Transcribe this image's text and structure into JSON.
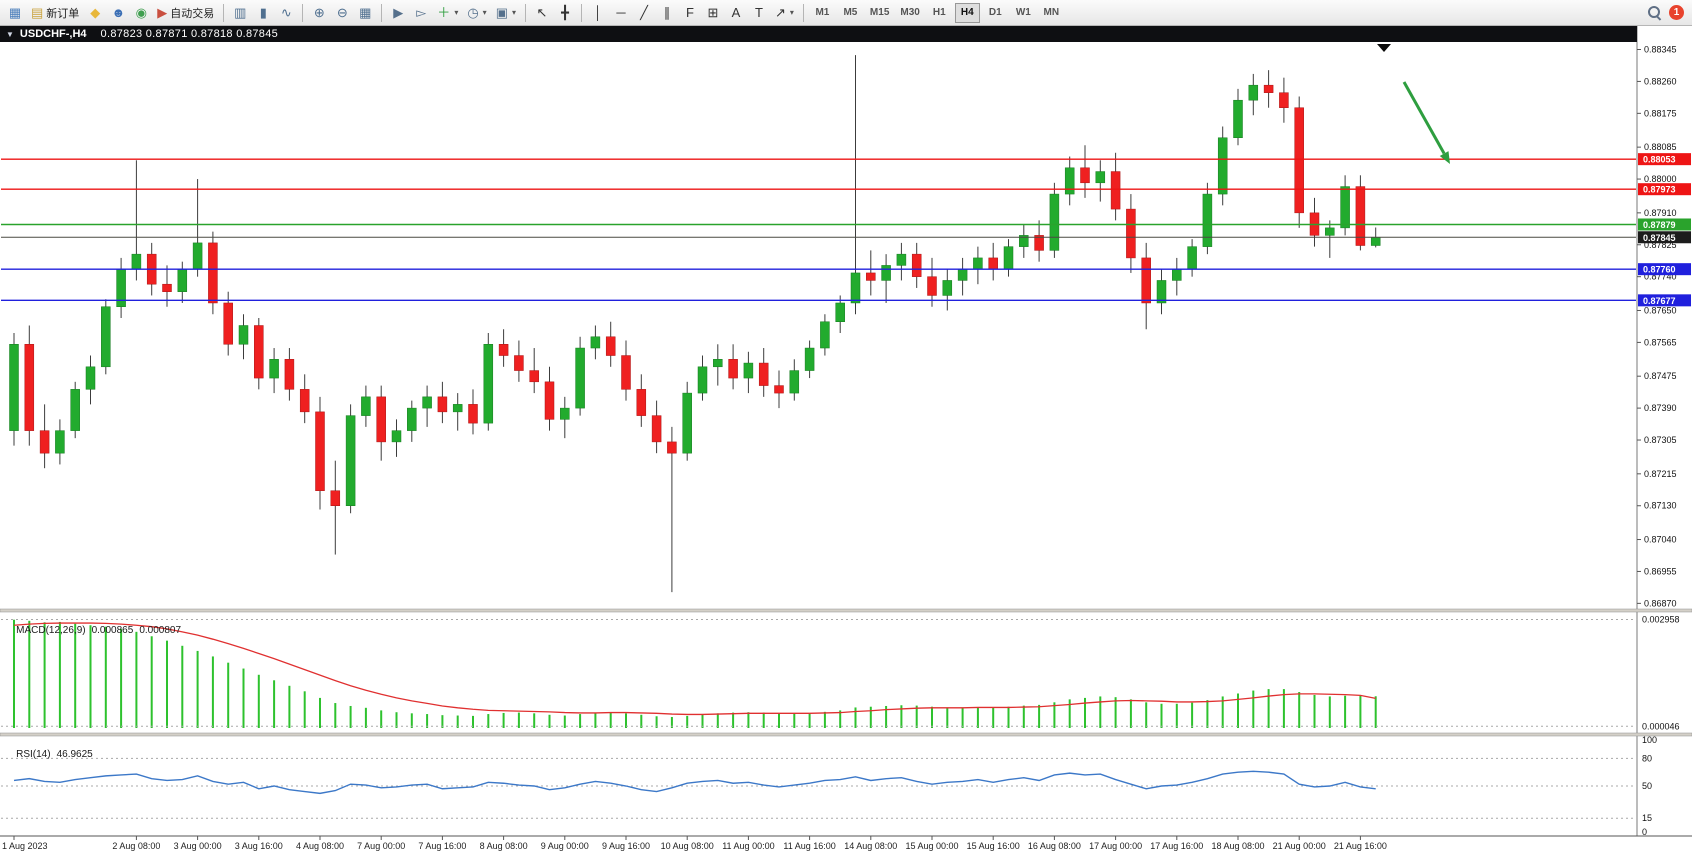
{
  "window": {
    "title_symbol": "USDCHF-,H4",
    "ohlc": "0.87823 0.87871 0.87818 0.87845"
  },
  "toolbar": {
    "notification_count": "1",
    "active_timeframe": "H4",
    "timeframes": [
      "M1",
      "M5",
      "M15",
      "M30",
      "H1",
      "H4",
      "D1",
      "W1",
      "MN"
    ],
    "groups": [
      {
        "items": [
          {
            "name": "new-chart",
            "glyph": "▦",
            "color": "#4a7ebb"
          },
          {
            "name": "new-order",
            "glyph": "▤",
            "color": "#c9a23c",
            "label": "新订单"
          },
          {
            "name": "favorites",
            "glyph": "◆",
            "color": "#e8b73a"
          },
          {
            "name": "profile",
            "glyph": "☻",
            "color": "#3b6fb5"
          },
          {
            "name": "community",
            "glyph": "◉",
            "color": "#3f9f4f"
          },
          {
            "name": "auto-trading",
            "glyph": "▶",
            "color": "#c94f3f",
            "label": "自动交易"
          }
        ]
      },
      {
        "items": [
          {
            "name": "bar-chart",
            "glyph": "▥",
            "color": "#4f6f8f"
          },
          {
            "name": "candlestick-chart",
            "glyph": "▮",
            "color": "#4f6f8f"
          },
          {
            "name": "line-chart",
            "glyph": "∿",
            "color": "#4f6f8f"
          }
        ]
      },
      {
        "items": [
          {
            "name": "zoom-in",
            "glyph": "⊕",
            "color": "#4f6f8f"
          },
          {
            "name": "zoom-out",
            "glyph": "⊖",
            "color": "#4f6f8f"
          },
          {
            "name": "tile-windows",
            "glyph": "▦",
            "color": "#4f6f8f"
          }
        ]
      },
      {
        "items": [
          {
            "name": "auto-scroll",
            "glyph": "▶",
            "color": "#55708c"
          },
          {
            "name": "chart-shift",
            "glyph": "▻",
            "color": "#55708c"
          },
          {
            "name": "indicators",
            "glyph": "＋",
            "color": "#2f9e3f",
            "dropdown": true
          },
          {
            "name": "periods",
            "glyph": "◷",
            "color": "#55708c",
            "dropdown": true
          },
          {
            "name": "templates",
            "glyph": "▣",
            "color": "#55708c",
            "dropdown": true
          }
        ]
      },
      {
        "items": [
          {
            "name": "cursor",
            "glyph": "↖",
            "color": "#333333"
          },
          {
            "name": "crosshair",
            "glyph": "╋",
            "color": "#333333"
          }
        ]
      },
      {
        "items": [
          {
            "name": "vertical-line",
            "glyph": "│",
            "color": "#333333"
          },
          {
            "name": "horizontal-line",
            "glyph": "─",
            "color": "#333333"
          },
          {
            "name": "trendline",
            "glyph": "╱",
            "color": "#333333"
          },
          {
            "name": "equidistant-channel",
            "glyph": "∥",
            "color": "#333333"
          },
          {
            "name": "fibonacci",
            "glyph": "F",
            "color": "#333333"
          },
          {
            "name": "shapes",
            "glyph": "⊞",
            "color": "#333333"
          },
          {
            "name": "text",
            "glyph": "A",
            "color": "#333333"
          },
          {
            "name": "text-label",
            "glyph": "T",
            "color": "#333333"
          },
          {
            "name": "arrows",
            "glyph": "↗",
            "color": "#333333",
            "dropdown": true
          }
        ]
      }
    ]
  },
  "chart_data": {
    "type": "candlestick",
    "symbol": "USDCHF",
    "timeframe": "H4",
    "price_range": [
      0.86855,
      0.88365
    ],
    "price_axis_ticks": [
      "0.88345",
      "0.88260",
      "0.88175",
      "0.88085",
      "0.88000",
      "0.87910",
      "0.87825",
      "0.87740",
      "0.87650",
      "0.87565",
      "0.87475",
      "0.87390",
      "0.87305",
      "0.87215",
      "0.87130",
      "0.87040",
      "0.86955",
      "0.86870"
    ],
    "x_labels": [
      {
        "label": "1 Aug 2023",
        "candle": 0
      },
      {
        "label": "2 Aug 08:00",
        "candle": 8
      },
      {
        "label": "3 Aug 00:00",
        "candle": 12
      },
      {
        "label": "3 Aug 16:00",
        "candle": 16
      },
      {
        "label": "4 Aug 08:00",
        "candle": 20
      },
      {
        "label": "7 Aug 00:00",
        "candle": 24
      },
      {
        "label": "7 Aug 16:00",
        "candle": 28
      },
      {
        "label": "8 Aug 08:00",
        "candle": 32
      },
      {
        "label": "9 Aug 00:00",
        "candle": 36
      },
      {
        "label": "9 Aug 16:00",
        "candle": 40
      },
      {
        "label": "10 Aug 08:00",
        "candle": 44
      },
      {
        "label": "11 Aug 00:00",
        "candle": 48
      },
      {
        "label": "11 Aug 16:00",
        "candle": 52
      },
      {
        "label": "14 Aug 08:00",
        "candle": 56
      },
      {
        "label": "15 Aug 00:00",
        "candle": 60
      },
      {
        "label": "15 Aug 16:00",
        "candle": 64
      },
      {
        "label": "16 Aug 08:00",
        "candle": 68
      },
      {
        "label": "17 Aug 00:00",
        "candle": 72
      },
      {
        "label": "17 Aug 16:00",
        "candle": 76
      },
      {
        "label": "18 Aug 08:00",
        "candle": 80
      },
      {
        "label": "21 Aug 00:00",
        "candle": 84
      },
      {
        "label": "21 Aug 16:00",
        "candle": 88
      }
    ],
    "candles": [
      [
        0.8733,
        0.8759,
        0.8729,
        0.8756
      ],
      [
        0.8756,
        0.8761,
        0.8729,
        0.8733
      ],
      [
        0.8733,
        0.874,
        0.8723,
        0.8727
      ],
      [
        0.8727,
        0.8736,
        0.8724,
        0.8733
      ],
      [
        0.8733,
        0.8746,
        0.8731,
        0.8744
      ],
      [
        0.8744,
        0.8753,
        0.874,
        0.875
      ],
      [
        0.875,
        0.8768,
        0.8748,
        0.8766
      ],
      [
        0.8766,
        0.8779,
        0.8763,
        0.8776
      ],
      [
        0.8776,
        0.8805,
        0.8773,
        0.878
      ],
      [
        0.878,
        0.8783,
        0.8769,
        0.8772
      ],
      [
        0.8772,
        0.8777,
        0.8766,
        0.877
      ],
      [
        0.877,
        0.8778,
        0.8767,
        0.8776
      ],
      [
        0.8776,
        0.88,
        0.8774,
        0.8783
      ],
      [
        0.8783,
        0.8786,
        0.8764,
        0.8767
      ],
      [
        0.8767,
        0.877,
        0.8753,
        0.8756
      ],
      [
        0.8756,
        0.8764,
        0.8752,
        0.8761
      ],
      [
        0.8761,
        0.8763,
        0.8744,
        0.8747
      ],
      [
        0.8747,
        0.8755,
        0.8743,
        0.8752
      ],
      [
        0.8752,
        0.8755,
        0.8741,
        0.8744
      ],
      [
        0.8744,
        0.8748,
        0.8735,
        0.8738
      ],
      [
        0.8738,
        0.8742,
        0.8712,
        0.8717
      ],
      [
        0.8717,
        0.8725,
        0.87,
        0.8713
      ],
      [
        0.8713,
        0.874,
        0.8711,
        0.8737
      ],
      [
        0.8737,
        0.8745,
        0.8734,
        0.8742
      ],
      [
        0.8742,
        0.8745,
        0.8725,
        0.873
      ],
      [
        0.873,
        0.8736,
        0.8726,
        0.8733
      ],
      [
        0.8733,
        0.8741,
        0.873,
        0.8739
      ],
      [
        0.8739,
        0.8745,
        0.8734,
        0.8742
      ],
      [
        0.8742,
        0.8746,
        0.8735,
        0.8738
      ],
      [
        0.8738,
        0.8743,
        0.8733,
        0.874
      ],
      [
        0.874,
        0.8744,
        0.8732,
        0.8735
      ],
      [
        0.8735,
        0.8759,
        0.8733,
        0.8756
      ],
      [
        0.8756,
        0.876,
        0.875,
        0.8753
      ],
      [
        0.8753,
        0.8757,
        0.8746,
        0.8749
      ],
      [
        0.8749,
        0.8755,
        0.8743,
        0.8746
      ],
      [
        0.8746,
        0.875,
        0.8733,
        0.8736
      ],
      [
        0.8736,
        0.8742,
        0.8731,
        0.8739
      ],
      [
        0.8739,
        0.8758,
        0.8737,
        0.8755
      ],
      [
        0.8755,
        0.8761,
        0.8752,
        0.8758
      ],
      [
        0.8758,
        0.8762,
        0.875,
        0.8753
      ],
      [
        0.8753,
        0.8757,
        0.8741,
        0.8744
      ],
      [
        0.8744,
        0.8748,
        0.8734,
        0.8737
      ],
      [
        0.8737,
        0.8741,
        0.8727,
        0.873
      ],
      [
        0.873,
        0.8734,
        0.869,
        0.8727
      ],
      [
        0.8727,
        0.8746,
        0.8725,
        0.8743
      ],
      [
        0.8743,
        0.8753,
        0.8741,
        0.875
      ],
      [
        0.875,
        0.8756,
        0.8745,
        0.8752
      ],
      [
        0.8752,
        0.8756,
        0.8744,
        0.8747
      ],
      [
        0.8747,
        0.8754,
        0.8743,
        0.8751
      ],
      [
        0.8751,
        0.8755,
        0.8742,
        0.8745
      ],
      [
        0.8745,
        0.8749,
        0.8739,
        0.8743
      ],
      [
        0.8743,
        0.8752,
        0.8741,
        0.8749
      ],
      [
        0.8749,
        0.8757,
        0.8747,
        0.8755
      ],
      [
        0.8755,
        0.8764,
        0.8753,
        0.8762
      ],
      [
        0.8762,
        0.8769,
        0.8759,
        0.8767
      ],
      [
        0.8767,
        0.8833,
        0.8764,
        0.8775
      ],
      [
        0.8775,
        0.8781,
        0.8769,
        0.8773
      ],
      [
        0.8773,
        0.878,
        0.8767,
        0.8777
      ],
      [
        0.8777,
        0.8783,
        0.8773,
        0.878
      ],
      [
        0.878,
        0.8783,
        0.8771,
        0.8774
      ],
      [
        0.8774,
        0.8779,
        0.8766,
        0.8769
      ],
      [
        0.8769,
        0.8776,
        0.8765,
        0.8773
      ],
      [
        0.8773,
        0.8779,
        0.8769,
        0.8776
      ],
      [
        0.8776,
        0.8782,
        0.8772,
        0.8779
      ],
      [
        0.8779,
        0.8783,
        0.8773,
        0.8776
      ],
      [
        0.8776,
        0.8784,
        0.8774,
        0.8782
      ],
      [
        0.8782,
        0.8788,
        0.8779,
        0.8785
      ],
      [
        0.8785,
        0.8789,
        0.8778,
        0.8781
      ],
      [
        0.8781,
        0.8799,
        0.8779,
        0.8796
      ],
      [
        0.8796,
        0.8806,
        0.8793,
        0.8803
      ],
      [
        0.8803,
        0.8809,
        0.8795,
        0.8799
      ],
      [
        0.8799,
        0.8805,
        0.8794,
        0.8802
      ],
      [
        0.8802,
        0.8807,
        0.8789,
        0.8792
      ],
      [
        0.8792,
        0.8796,
        0.8775,
        0.8779
      ],
      [
        0.8779,
        0.8783,
        0.876,
        0.8767
      ],
      [
        0.8767,
        0.8776,
        0.8764,
        0.8773
      ],
      [
        0.8773,
        0.8779,
        0.8769,
        0.8776
      ],
      [
        0.8776,
        0.8784,
        0.8774,
        0.8782
      ],
      [
        0.8782,
        0.8799,
        0.878,
        0.8796
      ],
      [
        0.8796,
        0.8814,
        0.8793,
        0.8811
      ],
      [
        0.8811,
        0.8824,
        0.8809,
        0.8821
      ],
      [
        0.8821,
        0.8828,
        0.8817,
        0.8825
      ],
      [
        0.8825,
        0.8829,
        0.8819,
        0.8823
      ],
      [
        0.8823,
        0.8827,
        0.8815,
        0.8819
      ],
      [
        0.8819,
        0.8822,
        0.8787,
        0.8791
      ],
      [
        0.8791,
        0.8795,
        0.8782,
        0.8785
      ],
      [
        0.8785,
        0.8789,
        0.8779,
        0.8787
      ],
      [
        0.8787,
        0.8801,
        0.8785,
        0.8798
      ],
      [
        0.8798,
        0.8801,
        0.8781,
        0.87823
      ],
      [
        0.87823,
        0.87871,
        0.87818,
        0.87845
      ]
    ],
    "levels": [
      {
        "price": 0.88053,
        "label": "0.88053",
        "color": "#ee1515",
        "width": 1.4,
        "kind": "resistance"
      },
      {
        "price": 0.87973,
        "label": "0.87973",
        "color": "#ee1515",
        "width": 1.4,
        "kind": "resistance"
      },
      {
        "price": 0.87879,
        "label": "0.87879",
        "color": "#2aa32c",
        "width": 1.4,
        "kind": "pivot"
      },
      {
        "price": 0.87845,
        "label": "0.87845",
        "color": "#4a4a42",
        "width": 1.0,
        "kind": "current-bid"
      },
      {
        "price": 0.8776,
        "label": "0.87760",
        "color": "#2020dd",
        "width": 1.4,
        "kind": "support"
      },
      {
        "price": 0.87677,
        "label": "0.87677",
        "color": "#2020dd",
        "width": 1.4,
        "kind": "support"
      }
    ],
    "current_price": 0.87845,
    "indicators": {
      "macd": {
        "title": "MACD(12,26,9)",
        "value_main": "0.000865",
        "value_signal": "0.000807",
        "axis": [
          {
            "label": "0.002958",
            "value": 0.002958
          },
          {
            "label": "0.000046",
            "value": 4.6e-05
          }
        ],
        "histogram_color": "#2ec22e",
        "signal_color": "#e03030",
        "unit_scale": 0.0001,
        "histogram": [
          29.5,
          29.2,
          28.8,
          28.9,
          28.4,
          28,
          27.6,
          27,
          26.2,
          25,
          23.8,
          22.4,
          21,
          19.5,
          17.8,
          16.2,
          14.5,
          13,
          11.5,
          10,
          8.2,
          6.8,
          6,
          5.5,
          4.8,
          4.3,
          4,
          3.8,
          3.5,
          3.4,
          3.3,
          3.8,
          4.1,
          4.2,
          4,
          3.6,
          3.4,
          3.8,
          4.2,
          4.3,
          4,
          3.6,
          3.2,
          3,
          3.3,
          3.7,
          4,
          4.2,
          4.3,
          4.2,
          4,
          3.9,
          4,
          4.4,
          4.8,
          5.6,
          5.8,
          6,
          6.2,
          6.1,
          5.8,
          5.6,
          5.6,
          5.7,
          5.6,
          5.8,
          6.1,
          6.3,
          7,
          7.8,
          8.2,
          8.6,
          8.4,
          7.8,
          7,
          6.6,
          6.6,
          6.9,
          7.6,
          8.6,
          9.4,
          10.2,
          10.6,
          10.6,
          9.8,
          9,
          8.6,
          8.8,
          8.8,
          8.65
        ],
        "signal": [
          28,
          28.3,
          28.5,
          28.6,
          28.6,
          28.6,
          28.5,
          28.3,
          28,
          27.6,
          27,
          26.2,
          25.3,
          24.2,
          23,
          21.7,
          20.3,
          18.9,
          17.4,
          15.9,
          14.4,
          12.9,
          11.5,
          10.3,
          9.2,
          8.2,
          7.4,
          6.7,
          6,
          5.5,
          5.1,
          4.8,
          4.7,
          4.6,
          4.5,
          4.4,
          4.2,
          4.1,
          4.1,
          4.2,
          4.2,
          4.1,
          4,
          3.8,
          3.7,
          3.7,
          3.8,
          3.9,
          4,
          4,
          4,
          4,
          4,
          4.1,
          4.2,
          4.5,
          4.7,
          5,
          5.2,
          5.4,
          5.5,
          5.5,
          5.5,
          5.6,
          5.6,
          5.6,
          5.7,
          5.8,
          6.1,
          6.4,
          6.8,
          7.1,
          7.4,
          7.5,
          7.4,
          7.3,
          7.1,
          7.1,
          7.2,
          7.4,
          7.8,
          8.2,
          8.7,
          9.1,
          9.3,
          9.3,
          9.2,
          9.1,
          8.9,
          8.07
        ]
      },
      "rsi": {
        "title": "RSI(14)",
        "value": "46.9625",
        "line_color": "#3c78c8",
        "axis": [
          {
            "label": "100",
            "value": 100
          },
          {
            "label": "80",
            "value": 80
          },
          {
            "label": "50",
            "value": 50
          },
          {
            "label": "15",
            "value": 15
          },
          {
            "label": "0",
            "value": 0
          }
        ],
        "levels": [
          80,
          50,
          15
        ],
        "values": [
          56,
          58,
          55,
          54,
          57,
          59,
          61,
          62,
          63,
          58,
          56,
          57,
          61,
          55,
          52,
          54,
          47,
          50,
          46,
          44,
          42,
          45,
          52,
          51,
          48,
          49,
          51,
          52,
          47,
          48,
          49,
          54,
          53,
          51,
          50,
          46,
          48,
          52,
          55,
          53,
          50,
          46,
          44,
          48,
          53,
          55,
          56,
          53,
          54,
          51,
          49,
          51,
          53,
          56,
          57,
          60,
          56,
          58,
          59,
          55,
          52,
          54,
          55,
          57,
          54,
          57,
          59,
          56,
          62,
          64,
          62,
          63,
          57,
          52,
          47,
          50,
          51,
          54,
          58,
          63,
          65,
          66,
          65,
          63,
          52,
          49,
          50,
          54,
          49,
          47
        ]
      }
    },
    "annotations": [
      {
        "type": "arrow",
        "name": "sell-signal-arrow",
        "color": "#2e9e3f",
        "from": [
          1404,
          82
        ],
        "to": [
          1450,
          164
        ],
        "width": 3
      }
    ],
    "colors": {
      "candle_up": "#22ab2e",
      "candle_down": "#ef2020",
      "wick": "#3c3c3c",
      "background": "#ffffff"
    }
  }
}
